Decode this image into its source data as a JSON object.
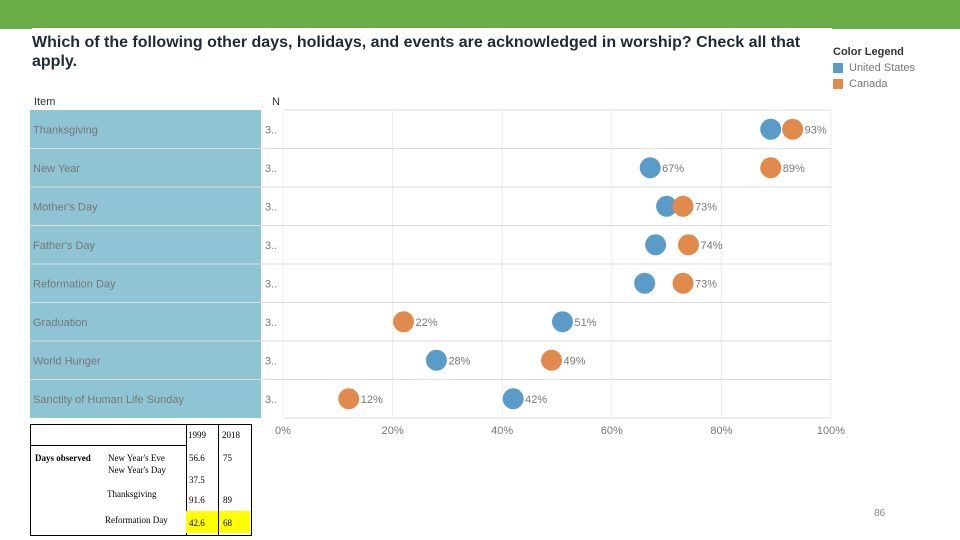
{
  "title": "Which of the following other days, holidays, and events are acknowledged in worship? Check all that apply.",
  "legend": {
    "title": "Color Legend",
    "items": [
      {
        "label": "United States",
        "color": "#5b9bc8"
      },
      {
        "label": "Canada",
        "color": "#e08a4e"
      }
    ]
  },
  "headers": {
    "item": "Item",
    "n": "N"
  },
  "chart_data": {
    "type": "scatter",
    "x_ticks": [
      "0%",
      "20%",
      "40%",
      "60%",
      "80%",
      "100%"
    ],
    "xlim": [
      0,
      100
    ],
    "categories": [
      "Thanksgiving",
      "New Year",
      "Mother's Day",
      "Father's Day",
      "Reformation Day",
      "Graduation",
      "World Hunger",
      "Sanctity of Human Life Sunday"
    ],
    "n_labels": [
      "3..",
      "3..",
      "3..",
      "3..",
      "3..",
      "3..",
      "3..",
      "3.."
    ],
    "series": [
      {
        "name": "United States",
        "color": "#5b9bc8",
        "values": [
          89,
          67,
          70,
          68,
          66,
          51,
          28,
          42
        ],
        "labels": [
          "",
          "67%",
          "",
          "",
          "",
          "51%",
          "28%",
          "42%"
        ]
      },
      {
        "name": "Canada",
        "color": "#e08a4e",
        "values": [
          93,
          89,
          73,
          74,
          73,
          22,
          49,
          12
        ],
        "labels": [
          "93%",
          "89%",
          "73%",
          "74%",
          "73%",
          "22%",
          "49%",
          "12%"
        ]
      }
    ]
  },
  "table": {
    "years": [
      "1999",
      "2018"
    ],
    "label": "Days observed",
    "items": [
      "New Year's Eve",
      "New Year's Day",
      "Thanksgiving",
      "Reformation Day"
    ],
    "values": {
      "ny_1999": "56.6",
      "ny_2018": "75",
      "ny_extra": "37.5",
      "tg_1999": "91.6",
      "tg_2018": "89",
      "rd_1999": "42.6",
      "rd_2018": "68"
    }
  },
  "page_number": "86"
}
